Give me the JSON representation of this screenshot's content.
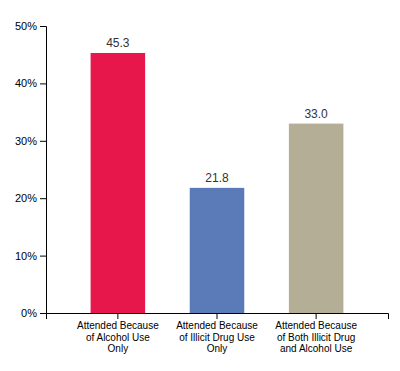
{
  "chart_data": {
    "type": "bar",
    "categories": [
      "Attended Because\nof Alcohol Use\nOnly",
      "Attended Because\nof Illicit Drug Use\nOnly",
      "Attended Because\nof Both Illicit Drug\nand Alcohol Use"
    ],
    "values": [
      45.3,
      21.8,
      33.0
    ],
    "value_labels": [
      "45.3",
      "21.8",
      "33.0"
    ],
    "colors": [
      "#E8174B",
      "#5B7BB8",
      "#B5AE96"
    ],
    "ylim": [
      0,
      50
    ],
    "yticks": [
      {
        "value": 0,
        "label": "0%"
      },
      {
        "value": 10,
        "label": "10%"
      },
      {
        "value": 20,
        "label": "20%"
      },
      {
        "value": 30,
        "label": "30%"
      },
      {
        "value": 40,
        "label": "40%"
      },
      {
        "value": 50,
        "label": "50%"
      }
    ],
    "data_labels": true,
    "grid": false
  }
}
